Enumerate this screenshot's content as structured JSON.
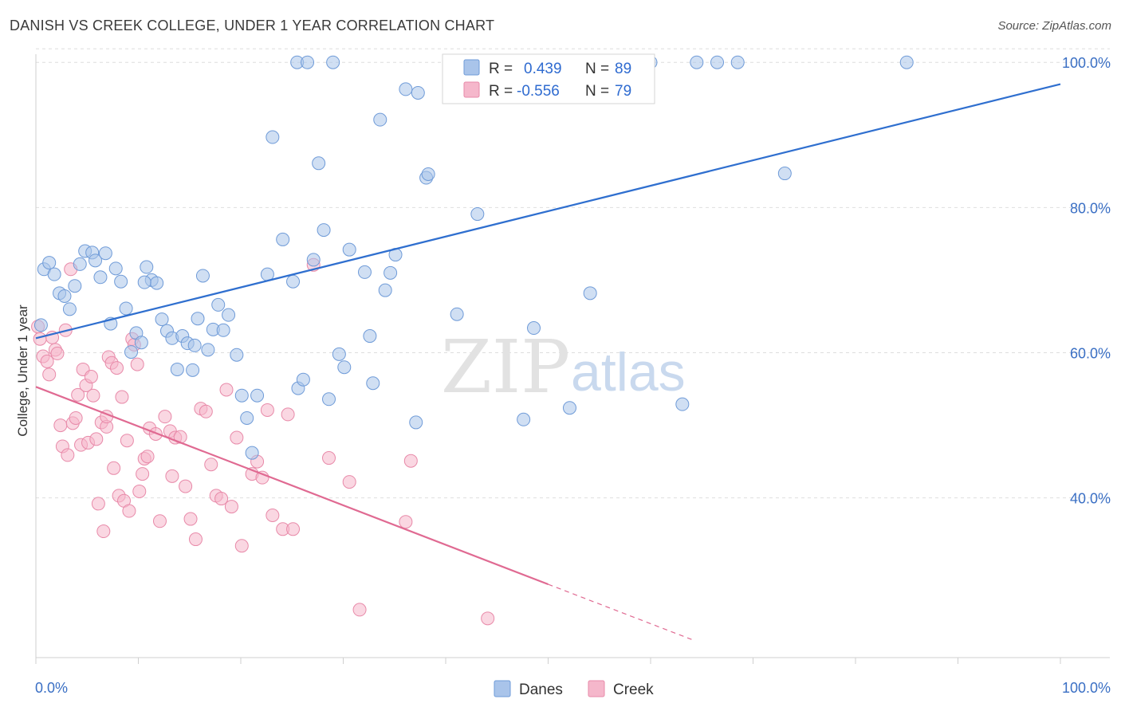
{
  "title": "DANISH VS CREEK COLLEGE, UNDER 1 YEAR CORRELATION CHART",
  "source": "Source: ZipAtlas.com",
  "watermark": {
    "zip": "ZIP",
    "atlas": "atlas"
  },
  "legend_top": {
    "rows": [
      {
        "r_label": "R =",
        "r_value": "0.439",
        "n_label": "N =",
        "n_value": "89"
      },
      {
        "r_label": "R =",
        "r_value": "-0.556",
        "n_label": "N =",
        "n_value": "79"
      }
    ]
  },
  "legend_bottom": {
    "danes": "Danes",
    "creek": "Creek"
  },
  "colors": {
    "danes_fill": "#a9c4ea",
    "danes_stroke": "#6f9bd8",
    "danes_line": "#2f6fcf",
    "creek_fill": "#f5b7cb",
    "creek_stroke": "#e88aa9",
    "creek_line": "#e06a92",
    "grid": "#dedede",
    "tick_text": "#3a6fc4"
  },
  "chart_data": {
    "type": "scatter",
    "title": "DANISH VS CREEK COLLEGE, UNDER 1 YEAR CORRELATION CHART",
    "xlabel": "",
    "ylabel": "College, Under 1 year",
    "xlim": [
      0,
      100
    ],
    "ylim": [
      18,
      102
    ],
    "x_tick_labels": [
      "0.0%",
      "100.0%"
    ],
    "y_ticks": [
      40,
      60,
      80,
      100
    ],
    "y_tick_labels": [
      "40.0%",
      "60.0%",
      "80.0%",
      "100.0%"
    ],
    "grid": true,
    "legend_position": "bottom-center",
    "series": [
      {
        "name": "Danes",
        "r": 0.439,
        "n": 89,
        "trend": {
          "x": [
            0,
            100
          ],
          "y": [
            62.0,
            97.0
          ]
        },
        "points": [
          [
            0.5,
            63.8
          ],
          [
            0.8,
            71.5
          ],
          [
            1.3,
            72.4
          ],
          [
            1.8,
            70.8
          ],
          [
            2.3,
            68.2
          ],
          [
            2.8,
            67.8
          ],
          [
            3.3,
            66.0
          ],
          [
            3.8,
            69.2
          ],
          [
            4.3,
            72.2
          ],
          [
            4.8,
            74.0
          ],
          [
            5.5,
            73.8
          ],
          [
            5.8,
            72.7
          ],
          [
            6.3,
            70.4
          ],
          [
            6.8,
            73.7
          ],
          [
            7.3,
            64.0
          ],
          [
            7.8,
            71.6
          ],
          [
            8.3,
            69.8
          ],
          [
            8.8,
            66.1
          ],
          [
            9.3,
            60.1
          ],
          [
            9.8,
            62.7
          ],
          [
            10.3,
            61.4
          ],
          [
            10.8,
            71.8
          ],
          [
            11.3,
            70.0
          ],
          [
            11.8,
            69.6
          ],
          [
            12.3,
            64.6
          ],
          [
            12.8,
            63.0
          ],
          [
            13.3,
            62.0
          ],
          [
            13.8,
            57.7
          ],
          [
            14.3,
            62.3
          ],
          [
            14.8,
            61.3
          ],
          [
            15.3,
            57.6
          ],
          [
            15.8,
            64.7
          ],
          [
            16.3,
            70.6
          ],
          [
            16.8,
            60.4
          ],
          [
            17.3,
            63.2
          ],
          [
            17.8,
            66.6
          ],
          [
            18.3,
            63.1
          ],
          [
            18.8,
            65.2
          ],
          [
            19.6,
            59.7
          ],
          [
            20.1,
            54.1
          ],
          [
            20.6,
            51.0
          ],
          [
            21.1,
            46.2
          ],
          [
            21.6,
            54.1
          ],
          [
            22.6,
            70.8
          ],
          [
            23.1,
            89.7
          ],
          [
            24.1,
            75.6
          ],
          [
            25.1,
            69.8
          ],
          [
            25.6,
            55.1
          ],
          [
            26.1,
            56.3
          ],
          [
            27.1,
            72.8
          ],
          [
            27.6,
            86.1
          ],
          [
            28.1,
            76.9
          ],
          [
            28.6,
            53.6
          ],
          [
            29.6,
            59.8
          ],
          [
            30.1,
            58.0
          ],
          [
            30.6,
            74.2
          ],
          [
            32.1,
            71.1
          ],
          [
            32.6,
            62.3
          ],
          [
            32.9,
            55.8
          ],
          [
            33.6,
            92.1
          ],
          [
            34.1,
            68.6
          ],
          [
            34.6,
            71.0
          ],
          [
            35.1,
            73.5
          ],
          [
            36.1,
            96.3
          ],
          [
            37.1,
            50.4
          ],
          [
            38.1,
            84.1
          ],
          [
            38.3,
            84.6
          ],
          [
            41.1,
            65.3
          ],
          [
            43.1,
            79.1
          ],
          [
            47.6,
            50.8
          ],
          [
            48.6,
            63.4
          ],
          [
            52.1,
            52.4
          ],
          [
            54.1,
            68.2
          ],
          [
            63.1,
            52.9
          ],
          [
            73.1,
            84.7
          ],
          [
            25.5,
            100.0
          ],
          [
            26.5,
            100.0
          ],
          [
            44.0,
            100.0
          ],
          [
            55.0,
            100.0
          ],
          [
            64.5,
            100.0
          ],
          [
            66.5,
            100.0
          ],
          [
            68.5,
            100.0
          ],
          [
            85.0,
            100.0
          ],
          [
            37.3,
            95.8
          ],
          [
            29.0,
            100.0
          ],
          [
            46.0,
            100.0
          ],
          [
            60.0,
            100.0
          ],
          [
            10.6,
            69.7
          ],
          [
            15.5,
            61.0
          ]
        ]
      },
      {
        "name": "Creek",
        "r": -0.556,
        "n": 79,
        "trend": {
          "x": [
            0,
            50
          ],
          "y": [
            55.3,
            28.1
          ]
        },
        "trend_dashed": {
          "x": [
            50,
            64
          ],
          "y": [
            28.1,
            20.5
          ]
        },
        "points": [
          [
            0.2,
            63.6
          ],
          [
            0.4,
            61.9
          ],
          [
            0.7,
            59.5
          ],
          [
            1.1,
            58.8
          ],
          [
            1.3,
            57.0
          ],
          [
            1.6,
            62.1
          ],
          [
            1.9,
            60.4
          ],
          [
            2.1,
            59.9
          ],
          [
            2.4,
            50.0
          ],
          [
            2.6,
            47.1
          ],
          [
            2.9,
            63.1
          ],
          [
            3.1,
            45.9
          ],
          [
            3.4,
            71.5
          ],
          [
            3.6,
            50.3
          ],
          [
            3.9,
            51.0
          ],
          [
            4.1,
            54.2
          ],
          [
            4.4,
            47.3
          ],
          [
            4.6,
            57.7
          ],
          [
            4.9,
            55.5
          ],
          [
            5.1,
            47.6
          ],
          [
            5.4,
            56.7
          ],
          [
            5.6,
            54.1
          ],
          [
            5.9,
            48.1
          ],
          [
            6.1,
            39.2
          ],
          [
            6.4,
            50.4
          ],
          [
            6.6,
            35.4
          ],
          [
            6.9,
            49.8
          ],
          [
            7.1,
            59.4
          ],
          [
            7.4,
            58.6
          ],
          [
            7.6,
            44.1
          ],
          [
            7.9,
            57.9
          ],
          [
            8.1,
            40.3
          ],
          [
            8.4,
            53.9
          ],
          [
            8.6,
            39.6
          ],
          [
            8.9,
            47.9
          ],
          [
            9.1,
            38.2
          ],
          [
            9.4,
            61.9
          ],
          [
            9.6,
            61.1
          ],
          [
            9.9,
            58.4
          ],
          [
            10.1,
            40.9
          ],
          [
            10.4,
            43.3
          ],
          [
            10.6,
            45.4
          ],
          [
            10.9,
            45.7
          ],
          [
            11.1,
            49.6
          ],
          [
            12.1,
            36.8
          ],
          [
            12.6,
            51.2
          ],
          [
            13.1,
            49.2
          ],
          [
            13.6,
            48.3
          ],
          [
            14.1,
            48.4
          ],
          [
            14.6,
            41.6
          ],
          [
            15.1,
            37.1
          ],
          [
            15.6,
            34.3
          ],
          [
            16.1,
            52.3
          ],
          [
            16.6,
            51.9
          ],
          [
            17.1,
            44.6
          ],
          [
            17.6,
            40.3
          ],
          [
            18.1,
            39.9
          ],
          [
            18.6,
            54.9
          ],
          [
            19.1,
            38.8
          ],
          [
            19.6,
            48.3
          ],
          [
            20.1,
            33.4
          ],
          [
            21.1,
            43.3
          ],
          [
            21.6,
            45.0
          ],
          [
            22.1,
            42.8
          ],
          [
            23.1,
            37.6
          ],
          [
            24.1,
            35.7
          ],
          [
            24.6,
            51.5
          ],
          [
            25.1,
            35.7
          ],
          [
            27.1,
            72.1
          ],
          [
            28.6,
            45.5
          ],
          [
            30.6,
            42.2
          ],
          [
            31.6,
            24.6
          ],
          [
            36.1,
            36.7
          ],
          [
            36.6,
            45.1
          ],
          [
            44.1,
            23.4
          ],
          [
            22.6,
            52.1
          ],
          [
            13.3,
            43.0
          ],
          [
            6.9,
            51.2
          ],
          [
            11.7,
            48.8
          ]
        ]
      }
    ]
  }
}
